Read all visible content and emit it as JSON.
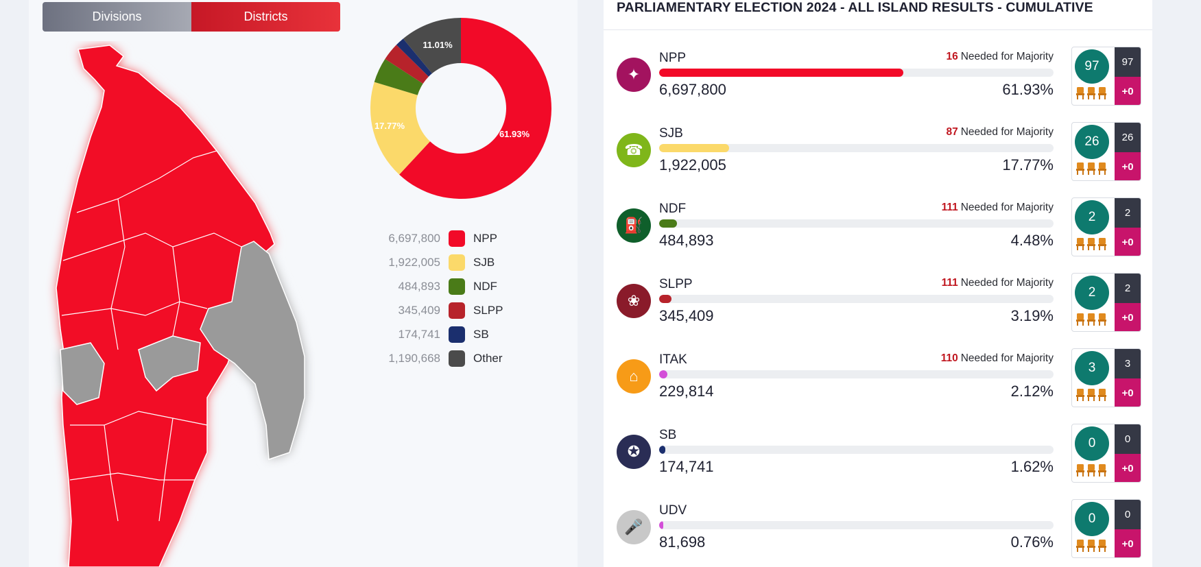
{
  "tabs": {
    "divisions": "Divisions",
    "districts": "Districts"
  },
  "colors": {
    "npp": "#f20a28",
    "other_region": "#9a9a9a"
  },
  "donut": {
    "labels": {
      "npp": "61.93%",
      "sjb": "17.77%",
      "other": "11.01%"
    },
    "slices": [
      {
        "name": "NPP",
        "pct": 61.93,
        "color": "#f20a28"
      },
      {
        "name": "SJB",
        "pct": 17.77,
        "color": "#fbd96a"
      },
      {
        "name": "NDF",
        "pct": 4.48,
        "color": "#4a7b18"
      },
      {
        "name": "SLPP",
        "pct": 3.19,
        "color": "#b7232b"
      },
      {
        "name": "SB",
        "pct": 1.62,
        "color": "#1b2f6e"
      },
      {
        "name": "Other",
        "pct": 11.01,
        "color": "#4b4b4b"
      }
    ]
  },
  "legend": [
    {
      "value": "6,697,800",
      "label": "NPP",
      "color": "#f20a28"
    },
    {
      "value": "1,922,005",
      "label": "SJB",
      "color": "#fbd96a"
    },
    {
      "value": "484,893",
      "label": "NDF",
      "color": "#4a7b18"
    },
    {
      "value": "345,409",
      "label": "SLPP",
      "color": "#b7232b"
    },
    {
      "value": "174,741",
      "label": "SB",
      "color": "#1b2f6e"
    },
    {
      "value": "1,190,668",
      "label": "Other",
      "color": "#4b4b4b"
    }
  ],
  "header": {
    "title": "PARLIAMENTARY ELECTION 2024 - ALL ISLAND RESULTS - CUMULATIVE"
  },
  "majority_text": "Needed for Majority",
  "parties": [
    {
      "name": "NPP",
      "needed": "16",
      "votes": "6,697,800",
      "pct": "61.93%",
      "pct_value": 61.93,
      "seats": "97",
      "total": "97",
      "change": "+0",
      "bar": "#f20a28",
      "logo": "#a3135f",
      "icon": "compass-icon",
      "glyph": "✦"
    },
    {
      "name": "SJB",
      "needed": "87",
      "votes": "1,922,005",
      "pct": "17.77%",
      "pct_value": 17.77,
      "seats": "26",
      "total": "26",
      "change": "+0",
      "bar": "#fbd96a",
      "logo": "#7fb61a",
      "icon": "telephone-icon",
      "glyph": "☎"
    },
    {
      "name": "NDF",
      "needed": "111",
      "votes": "484,893",
      "pct": "4.48%",
      "pct_value": 4.48,
      "seats": "2",
      "total": "2",
      "change": "+0",
      "bar": "#4a7b18",
      "logo": "#0f5f2b",
      "icon": "gas-cylinder-icon",
      "glyph": "⛽"
    },
    {
      "name": "SLPP",
      "needed": "111",
      "votes": "345,409",
      "pct": "3.19%",
      "pct_value": 3.19,
      "seats": "2",
      "total": "2",
      "change": "+0",
      "bar": "#b7232b",
      "logo": "#8a1b2a",
      "icon": "lotus-bud-icon",
      "glyph": "❀"
    },
    {
      "name": "ITAK",
      "needed": "110",
      "votes": "229,814",
      "pct": "2.12%",
      "pct_value": 2.12,
      "seats": "3",
      "total": "3",
      "change": "+0",
      "bar": "#d34fd8",
      "logo": "#f79b17",
      "icon": "house-icon",
      "glyph": "⌂"
    },
    {
      "name": "SB",
      "needed": "",
      "votes": "174,741",
      "pct": "1.62%",
      "pct_value": 1.62,
      "seats": "0",
      "total": "0",
      "change": "+0",
      "bar": "#1b2f6e",
      "logo": "#2a2d55",
      "icon": "medal-icon",
      "glyph": "✪"
    },
    {
      "name": "UDV",
      "needed": "",
      "votes": "81,698",
      "pct": "0.76%",
      "pct_value": 0.76,
      "seats": "0",
      "total": "0",
      "change": "+0",
      "bar": "#d34fd8",
      "logo": "#c8c8c8",
      "icon": "microphone-icon",
      "glyph": "🎤"
    }
  ]
}
